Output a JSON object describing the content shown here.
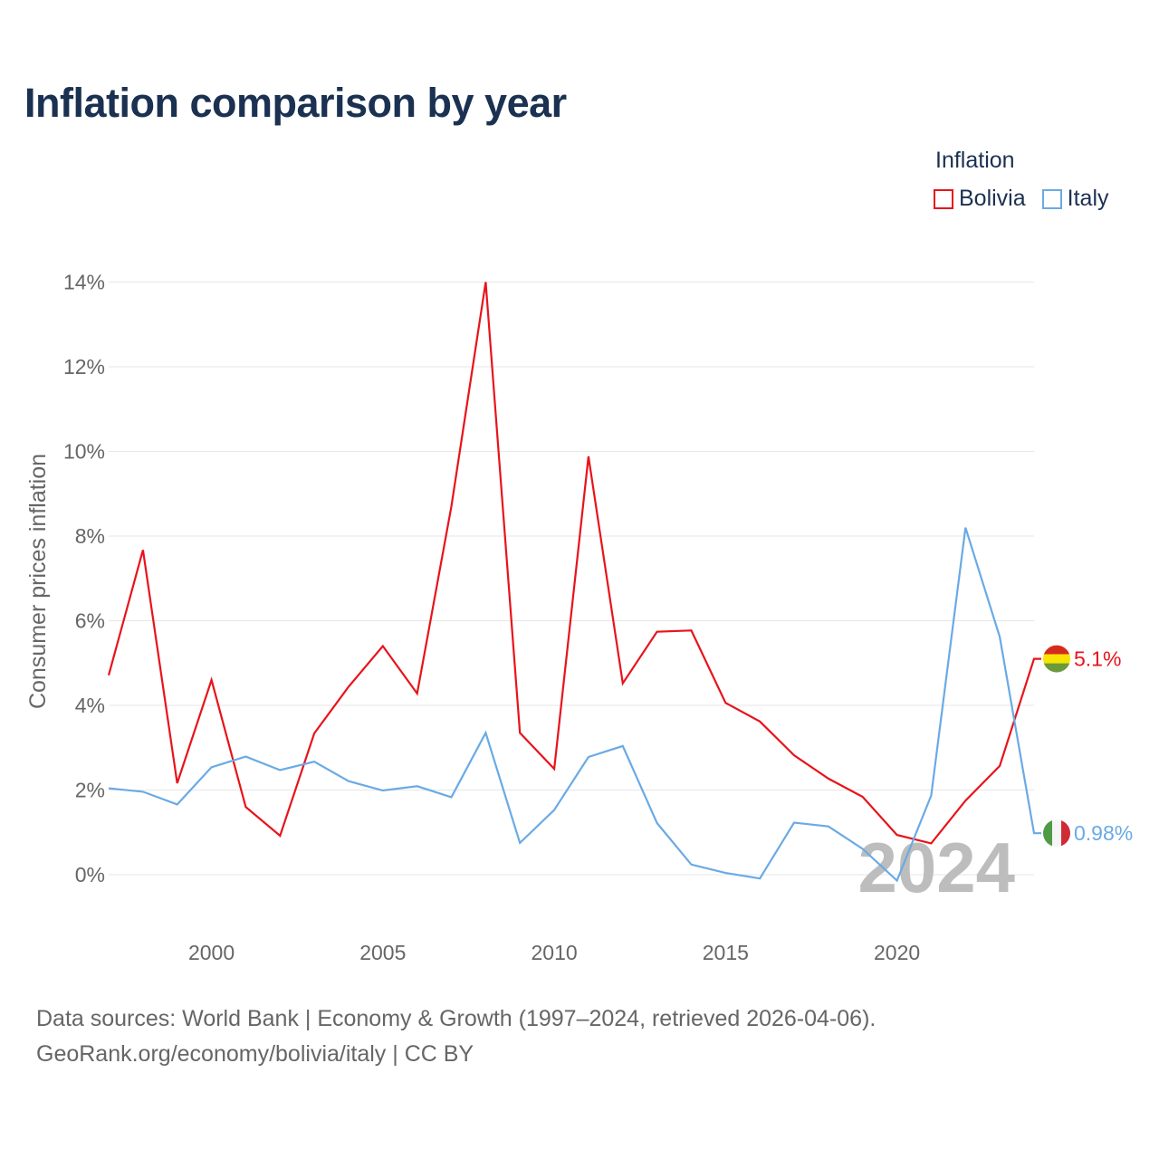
{
  "title": "Inflation comparison by year",
  "legend": {
    "title": "Inflation",
    "items": [
      {
        "label": "Bolivia",
        "color": "#e8131b"
      },
      {
        "label": "Italy",
        "color": "#6aaae4"
      }
    ]
  },
  "year_watermark": "2024",
  "footer": {
    "line1": "Data sources: World Bank | Economy & Growth (1997–2024, retrieved 2026-04-06).",
    "line2": "GeoRank.org/economy/bolivia/italy | CC BY"
  },
  "chart_data": {
    "type": "line",
    "title": "Inflation comparison by year",
    "ylabel": "Consumer prices inflation",
    "xlabel": "",
    "xlim": [
      1997,
      2024
    ],
    "ylim": [
      -1,
      14
    ],
    "x_ticks": [
      2000,
      2005,
      2010,
      2015,
      2020
    ],
    "x_tick_labels": [
      "2000",
      "2005",
      "2010",
      "2015",
      "2020"
    ],
    "y_ticks": [
      0,
      2,
      4,
      6,
      8,
      10,
      12,
      14
    ],
    "y_tick_labels": [
      "0%",
      "2%",
      "4%",
      "6%",
      "8%",
      "10%",
      "12%",
      "14%"
    ],
    "grid": true,
    "legend_position": "top-right",
    "x": [
      1997,
      1998,
      1999,
      2000,
      2001,
      2002,
      2003,
      2004,
      2005,
      2006,
      2007,
      2008,
      2009,
      2010,
      2011,
      2012,
      2013,
      2014,
      2015,
      2016,
      2017,
      2018,
      2019,
      2020,
      2021,
      2022,
      2023,
      2024
    ],
    "series": [
      {
        "name": "Bolivia",
        "color": "#e8131b",
        "end_label": "5.1%",
        "values": [
          4.71,
          7.67,
          2.16,
          4.6,
          1.6,
          0.92,
          3.34,
          4.44,
          5.4,
          4.28,
          8.7,
          14.0,
          3.35,
          2.5,
          9.88,
          4.52,
          5.74,
          5.77,
          4.06,
          3.62,
          2.82,
          2.27,
          1.84,
          0.94,
          0.74,
          1.75,
          2.57,
          5.1
        ]
      },
      {
        "name": "Italy",
        "color": "#6aaae4",
        "end_label": "0.98%",
        "values": [
          2.04,
          1.96,
          1.66,
          2.54,
          2.79,
          2.47,
          2.67,
          2.21,
          1.99,
          2.09,
          1.83,
          3.35,
          0.75,
          1.53,
          2.78,
          3.04,
          1.22,
          0.24,
          0.04,
          -0.09,
          1.23,
          1.14,
          0.61,
          -0.14,
          1.87,
          8.2,
          5.62,
          0.98
        ]
      }
    ]
  }
}
